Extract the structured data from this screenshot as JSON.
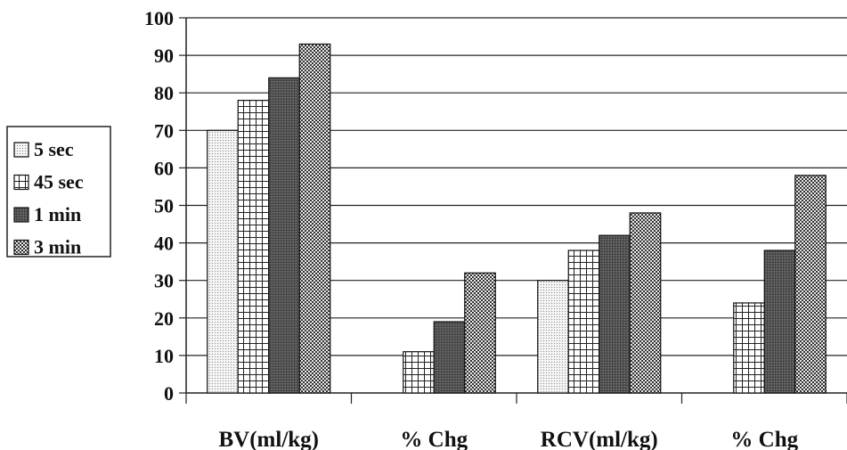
{
  "chart_data": {
    "type": "bar",
    "categories": [
      "BV(ml/kg)",
      "% Chg",
      "RCV(ml/kg)",
      "% Chg"
    ],
    "series": [
      {
        "name": "5 sec",
        "values": [
          70,
          null,
          30,
          null
        ],
        "pattern": "dots"
      },
      {
        "name": "45 sec",
        "values": [
          78,
          11,
          38,
          24
        ],
        "pattern": "grid"
      },
      {
        "name": "1 min",
        "values": [
          84,
          19,
          42,
          38
        ],
        "pattern": "dark"
      },
      {
        "name": "3 min",
        "values": [
          93,
          32,
          48,
          58
        ],
        "pattern": "check"
      }
    ],
    "y_ticks": [
      "0",
      "10",
      "20",
      "30",
      "40",
      "50",
      "60",
      "70",
      "80",
      "90",
      "100"
    ],
    "ylim": [
      0,
      100
    ],
    "grid": true,
    "legend_position": "left"
  }
}
